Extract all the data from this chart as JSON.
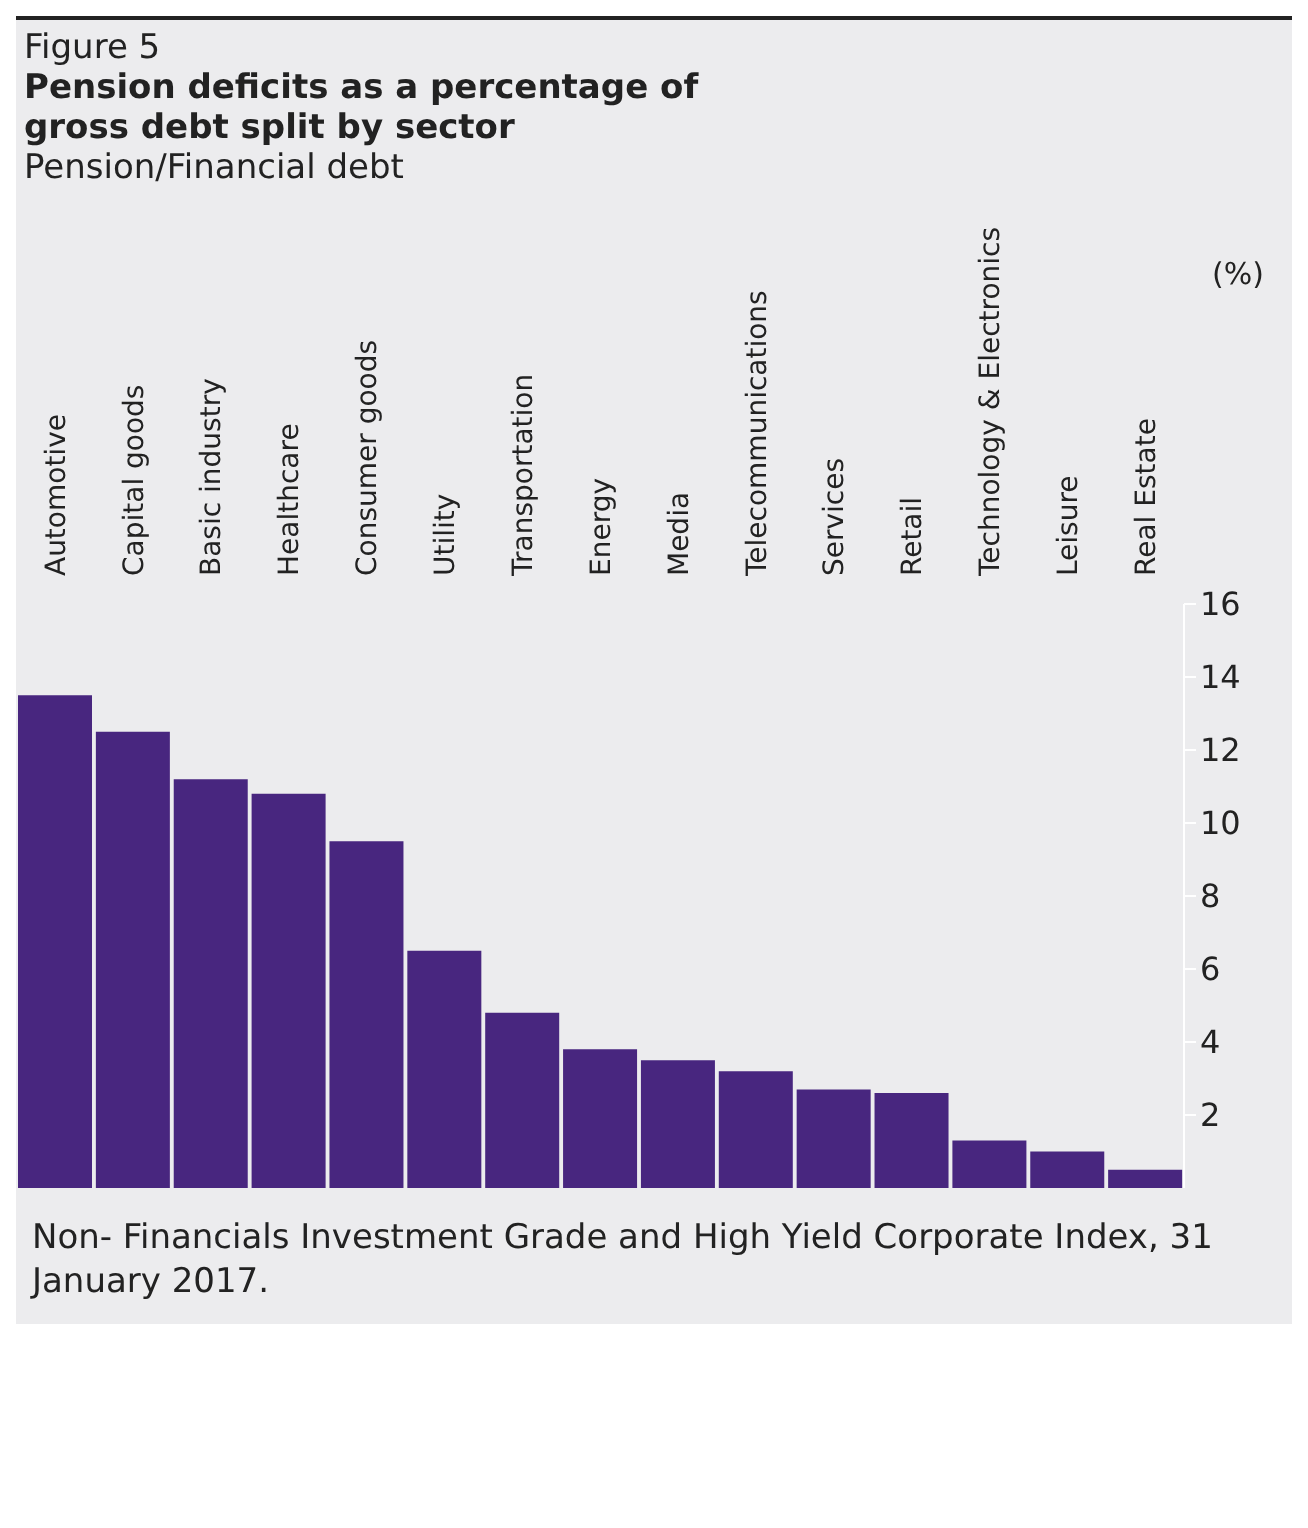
{
  "chart_data": {
    "type": "bar",
    "title": "Pension deficits as a percentage of gross debt split by sector",
    "subtitle": "Pension/Financial debt",
    "ylabel": "(%)",
    "annotations": [
      "Figure 5",
      "Non- Financials Investment Grade and High Yield Corporate Index, 31 January 2017."
    ],
    "categories": [
      "Automotive",
      "Capital goods",
      "Basic industry",
      "Healthcare",
      "Consumer goods",
      "Utility",
      "Transportation",
      "Energy",
      "Media",
      "Telecommunications",
      "Services",
      "Retail",
      "Technology & Electronics",
      "Leisure",
      "Real Estate"
    ],
    "values": [
      13.5,
      12.5,
      11.2,
      10.8,
      9.5,
      6.5,
      4.8,
      3.8,
      3.5,
      3.2,
      2.7,
      2.6,
      1.3,
      1.0,
      0.5
    ],
    "color": "#48267f",
    "ylim": [
      0,
      16
    ],
    "yticks": [
      2,
      4,
      6,
      8,
      10,
      12,
      14,
      16
    ],
    "grid": false,
    "legend": false
  }
}
